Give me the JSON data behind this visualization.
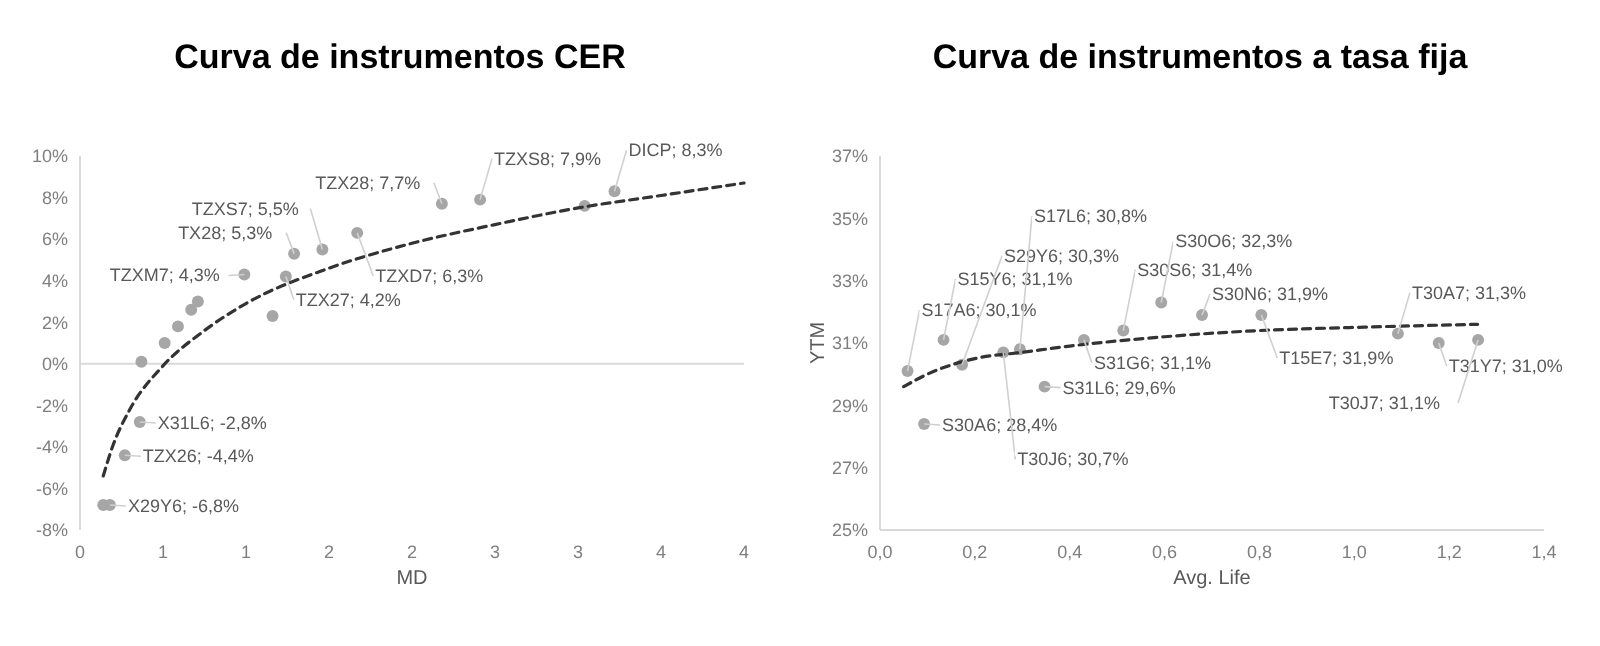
{
  "chart_data": [
    {
      "type": "scatter",
      "title": "Curva de instrumentos CER",
      "xlabel": "MD",
      "marker": "circle",
      "xlim": [
        0,
        4
      ],
      "xticks": [
        {
          "value": 0,
          "label": "0"
        },
        {
          "value": 0.5,
          "label": "1"
        },
        {
          "value": 1,
          "label": "1"
        },
        {
          "value": 1.5,
          "label": "2"
        },
        {
          "value": 2,
          "label": "2"
        },
        {
          "value": 2.5,
          "label": "3"
        },
        {
          "value": 3,
          "label": "3"
        },
        {
          "value": 3.5,
          "label": "4"
        },
        {
          "value": 4,
          "label": "4"
        }
      ],
      "ylim": [
        -8,
        10
      ],
      "yticks": [
        {
          "value": -8,
          "label": "-8%"
        },
        {
          "value": -6,
          "label": "-6%"
        },
        {
          "value": -4,
          "label": "-4%"
        },
        {
          "value": -2,
          "label": "-2%"
        },
        {
          "value": 0,
          "label": "0%"
        },
        {
          "value": 2,
          "label": "2%"
        },
        {
          "value": 4,
          "label": "4%"
        },
        {
          "value": 6,
          "label": "6%"
        },
        {
          "value": 8,
          "label": "8%"
        },
        {
          "value": 10,
          "label": "10%"
        }
      ],
      "series": [
        {
          "color": "#a6a6a6",
          "x": [
            0.14,
            0.18,
            0.27,
            0.36,
            0.37,
            0.51,
            0.59,
            0.67,
            0.71,
            1.16,
            0.99,
            1.24,
            1.29,
            1.46,
            1.67,
            2.18,
            2.41,
            3.04,
            3.22
          ],
          "values": [
            -6.8,
            -6.8,
            -4.4,
            -2.8,
            0.1,
            1.0,
            1.8,
            2.6,
            3.0,
            2.3,
            4.3,
            4.2,
            5.3,
            5.5,
            6.3,
            7.7,
            7.9,
            7.6,
            8.3
          ]
        },
        {
          "type": "line",
          "line_style": "dashed",
          "marker": "none",
          "color": "#333333",
          "x": [
            0.14,
            0.2,
            0.3,
            0.5,
            0.75,
            1,
            1.5,
            2,
            2.5,
            3,
            3.5,
            4
          ],
          "values": [
            -5.4,
            -3.9,
            -2.2,
            -0.1,
            1.6,
            2.9,
            4.6,
            5.8,
            6.7,
            7.5,
            8.1,
            8.7
          ]
        }
      ],
      "annotations": [
        {
          "text": "X29Y6; -6,8%",
          "x": 0.18,
          "y": -6.8
        },
        {
          "text": "TZX26; -4,4%",
          "x": 0.27,
          "y": -4.4
        },
        {
          "text": "X31L6; -2,8%",
          "x": 0.36,
          "y": -2.8
        },
        {
          "text": "TZXM7; 4,3%",
          "x": 0.99,
          "y": 4.3
        },
        {
          "text": "TZX27; 4,2%",
          "x": 1.24,
          "y": 4.2
        },
        {
          "text": "TX28; 5,3%",
          "x": 1.29,
          "y": 5.3
        },
        {
          "text": "TZXS7; 5,5%",
          "x": 1.46,
          "y": 5.5
        },
        {
          "text": "TZXD7; 6,3%",
          "x": 1.67,
          "y": 6.3
        },
        {
          "text": "TZX28; 7,7%",
          "x": 2.18,
          "y": 7.7
        },
        {
          "text": "TZXS8; 7,9%",
          "x": 2.41,
          "y": 7.9
        },
        {
          "text": "DICP; 8,3%",
          "x": 3.22,
          "y": 8.3
        }
      ]
    },
    {
      "type": "scatter",
      "title": "Curva de instrumentos a tasa fija",
      "xlabel": "Avg. Life",
      "ylabel": "YTM",
      "marker": "circle",
      "xlim": [
        0,
        1.4
      ],
      "xticks": [
        {
          "value": 0,
          "label": "0,0"
        },
        {
          "value": 0.2,
          "label": "0,2"
        },
        {
          "value": 0.4,
          "label": "0,4"
        },
        {
          "value": 0.6,
          "label": "0,6"
        },
        {
          "value": 0.8,
          "label": "0,8"
        },
        {
          "value": 1,
          "label": "1,0"
        },
        {
          "value": 1.2,
          "label": "1,2"
        },
        {
          "value": 1.4,
          "label": "1,4"
        }
      ],
      "ylim": [
        25,
        37
      ],
      "yticks": [
        {
          "value": 25,
          "label": "25%"
        },
        {
          "value": 27,
          "label": "27%"
        },
        {
          "value": 29,
          "label": "29%"
        },
        {
          "value": 31,
          "label": "31%"
        },
        {
          "value": 33,
          "label": "33%"
        },
        {
          "value": 35,
          "label": "35%"
        },
        {
          "value": 37,
          "label": "37%"
        }
      ],
      "series": [
        {
          "color": "#a6a6a6",
          "x": [
            0.058,
            0.093,
            0.134,
            0.173,
            0.26,
            0.295,
            0.347,
            0.43,
            0.513,
            0.593,
            0.679,
            0.804,
            1.092,
            1.178,
            1.261
          ],
          "values": [
            30.1,
            28.4,
            31.1,
            30.3,
            30.7,
            30.8,
            29.6,
            31.1,
            31.4,
            32.3,
            31.9,
            31.9,
            31.3,
            31.0,
            31.1
          ]
        },
        {
          "type": "line",
          "line_style": "dashed",
          "marker": "none",
          "color": "#333333",
          "x": [
            0.05,
            0.1,
            0.2,
            0.3,
            0.4,
            0.6,
            0.8,
            1.0,
            1.26
          ],
          "values": [
            29.6,
            30.0,
            30.5,
            30.7,
            30.9,
            31.2,
            31.4,
            31.5,
            31.6
          ]
        }
      ],
      "annotations": [
        {
          "text": "S17A6; 30,1%",
          "x": 0.058,
          "y": 30.1
        },
        {
          "text": "S30A6; 28,4%",
          "x": 0.093,
          "y": 28.4
        },
        {
          "text": "S15Y6; 31,1%",
          "x": 0.134,
          "y": 31.1
        },
        {
          "text": "S29Y6; 30,3%",
          "x": 0.173,
          "y": 30.3
        },
        {
          "text": "T30J6; 30,7%",
          "x": 0.26,
          "y": 30.7
        },
        {
          "text": "S17L6; 30,8%",
          "x": 0.295,
          "y": 30.8
        },
        {
          "text": "S31L6; 29,6%",
          "x": 0.347,
          "y": 29.6
        },
        {
          "text": "S31G6; 31,1%",
          "x": 0.43,
          "y": 31.1
        },
        {
          "text": "S30S6; 31,4%",
          "x": 0.513,
          "y": 31.4
        },
        {
          "text": "S30O6; 32,3%",
          "x": 0.593,
          "y": 32.3
        },
        {
          "text": "S30N6; 31,9%",
          "x": 0.679,
          "y": 31.9
        },
        {
          "text": "T15E7; 31,9%",
          "x": 0.804,
          "y": 31.9
        },
        {
          "text": "T30A7; 31,3%",
          "x": 1.092,
          "y": 31.3
        },
        {
          "text": "T31Y7; 31,0%",
          "x": 1.178,
          "y": 31.0
        },
        {
          "text": "T30J7; 31,1%",
          "x": 1.261,
          "y": 31.1
        }
      ]
    }
  ]
}
